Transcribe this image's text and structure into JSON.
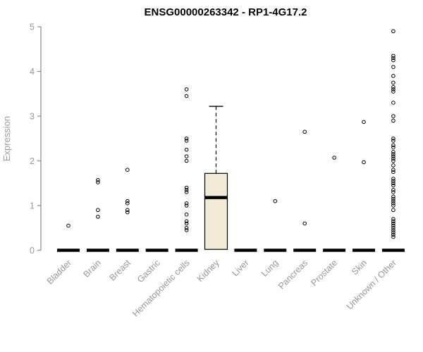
{
  "chart_data": {
    "type": "boxplot",
    "title": "ENSG00000263342 - RP1-4G17.2",
    "ylabel": "Expression",
    "xlabel": "",
    "ylim": [
      0,
      5
    ],
    "yticks": [
      0,
      1,
      2,
      3,
      4,
      5
    ],
    "grid": false,
    "legend": false,
    "categories": [
      "Bladder",
      "Brain",
      "Breast",
      "Gastric",
      "Hematopoietic cells",
      "Kidney",
      "Liver",
      "Lung",
      "Pancreas",
      "Prostate",
      "Skin",
      "Unknown / Other"
    ],
    "boxes": [
      {
        "category": "Bladder",
        "q1": 0,
        "median": 0,
        "q3": 0,
        "whisker_low": 0,
        "whisker_high": 0,
        "outliers": [
          0.55
        ]
      },
      {
        "category": "Brain",
        "q1": 0,
        "median": 0,
        "q3": 0,
        "whisker_low": 0,
        "whisker_high": 0,
        "outliers": [
          0.75,
          0.9,
          1.52,
          1.57
        ]
      },
      {
        "category": "Breast",
        "q1": 0,
        "median": 0,
        "q3": 0,
        "whisker_low": 0,
        "whisker_high": 0,
        "outliers": [
          0.85,
          0.9,
          1.05,
          1.1,
          1.8
        ]
      },
      {
        "category": "Gastric",
        "q1": 0,
        "median": 0,
        "q3": 0,
        "whisker_low": 0,
        "whisker_high": 0,
        "outliers": []
      },
      {
        "category": "Hematopoietic cells",
        "q1": 0,
        "median": 0,
        "q3": 0,
        "whisker_low": 0,
        "whisker_high": 0,
        "outliers": [
          0.45,
          0.5,
          0.6,
          0.65,
          0.8,
          1.0,
          1.05,
          1.3,
          1.35,
          1.4,
          2.0,
          2.1,
          2.25,
          2.45,
          2.5,
          3.45,
          3.6
        ]
      },
      {
        "category": "Kidney",
        "q1": 0.02,
        "median": 1.18,
        "q3": 1.72,
        "whisker_low": 0.02,
        "whisker_high": 3.22,
        "outliers": []
      },
      {
        "category": "Liver",
        "q1": 0,
        "median": 0,
        "q3": 0,
        "whisker_low": 0,
        "whisker_high": 0,
        "outliers": []
      },
      {
        "category": "Lung",
        "q1": 0,
        "median": 0,
        "q3": 0,
        "whisker_low": 0,
        "whisker_high": 0,
        "outliers": [
          1.1
        ]
      },
      {
        "category": "Pancreas",
        "q1": 0,
        "median": 0,
        "q3": 0,
        "whisker_low": 0,
        "whisker_high": 0,
        "outliers": [
          0.6,
          2.65
        ]
      },
      {
        "category": "Prostate",
        "q1": 0,
        "median": 0,
        "q3": 0,
        "whisker_low": 0,
        "whisker_high": 0,
        "outliers": [
          2.07
        ]
      },
      {
        "category": "Skin",
        "q1": 0,
        "median": 0,
        "q3": 0,
        "whisker_low": 0,
        "whisker_high": 0,
        "outliers": [
          1.97,
          2.87
        ]
      },
      {
        "category": "Unknown / Other",
        "q1": 0,
        "median": 0,
        "q3": 0,
        "whisker_low": 0,
        "whisker_high": 0,
        "outliers": [
          0.3,
          0.35,
          0.4,
          0.45,
          0.5,
          0.55,
          0.6,
          0.65,
          0.7,
          0.9,
          1.0,
          1.05,
          1.1,
          1.15,
          1.2,
          1.3,
          1.35,
          1.45,
          1.5,
          1.55,
          1.6,
          1.75,
          1.8,
          1.9,
          2.0,
          2.05,
          2.1,
          2.15,
          2.2,
          2.3,
          2.35,
          2.45,
          2.5,
          2.9,
          3.0,
          3.3,
          3.55,
          3.6,
          3.65,
          3.75,
          3.9,
          4.1,
          4.25,
          4.3,
          4.35,
          4.9
        ]
      }
    ],
    "colors": {
      "box_fill": "#f0ead6",
      "box_stroke": "#000000",
      "median_color": "#000000",
      "outlier_color": "#000000",
      "axis_color": "#8a8a8a",
      "tick_label_color": "#979797",
      "title_color": "#000000",
      "background": "#ffffff"
    }
  }
}
